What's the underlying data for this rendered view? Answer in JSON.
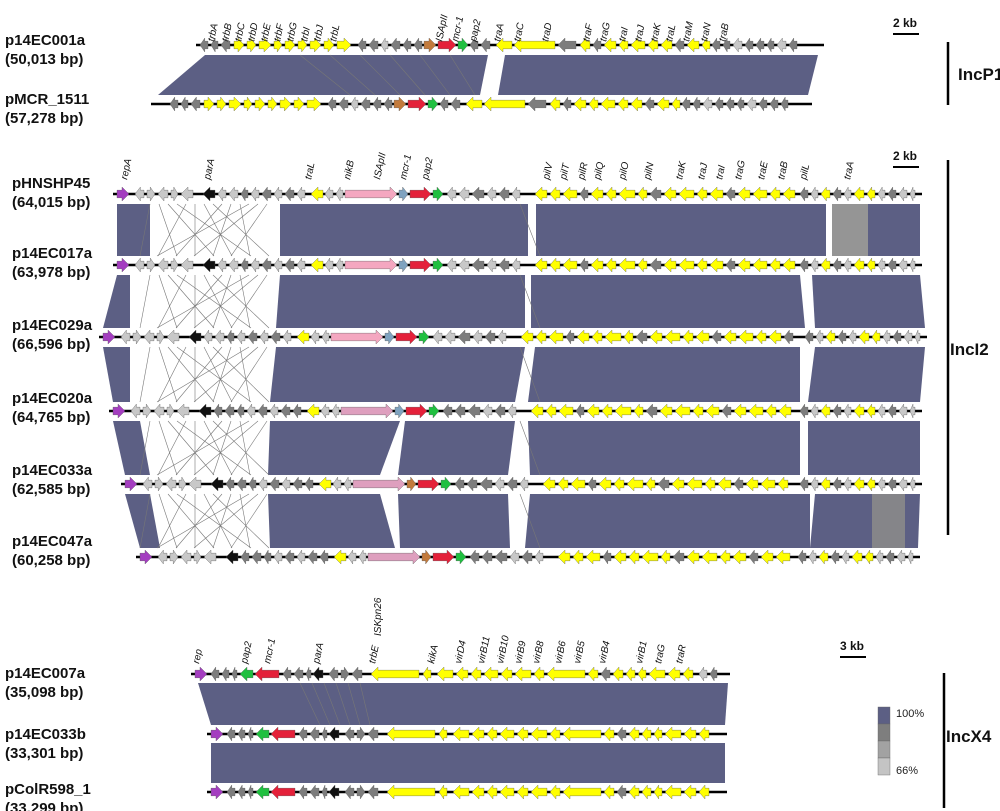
{
  "colors": {
    "yellow": "#ffff00",
    "dgray": "#7d7d7d",
    "lgray": "#c8c8c8",
    "red": "#e4213a",
    "green": "#20c040",
    "purple": "#a43ec0",
    "black": "#111111",
    "pink": "#f4a7c0",
    "dpink": "#de9fbe",
    "orange": "#c27a3c",
    "blue": "#7fa3c0",
    "band": "#5c5f84",
    "band_gray": "#8a8a8a"
  },
  "groups": [
    {
      "name": "IncP1",
      "scale": "2 kb",
      "plasmids": [
        {
          "name": "p14EC001a",
          "size": "(50,013 bp)"
        },
        {
          "name": "pMCR_1511",
          "size": "(57,278 bp)"
        }
      ],
      "genes": [
        "trbA",
        "trbB",
        "trbC",
        "trbD",
        "trbE",
        "trbF",
        "trbG",
        "trbI",
        "trbJ",
        "trbL",
        "ISApII",
        "mcr-1",
        "pap2",
        "traA",
        "traC",
        "traD",
        "traF",
        "traG",
        "traI",
        "traJ",
        "traK",
        "traL",
        "traM",
        "traN",
        "traB"
      ]
    },
    {
      "name": "IncI2",
      "scale": "2 kb",
      "plasmids": [
        {
          "name": "pHNSHP45",
          "size": "(64,015 bp)"
        },
        {
          "name": "p14EC017a",
          "size": "(63,978 bp)"
        },
        {
          "name": "p14EC029a",
          "size": "(66,596 bp)"
        },
        {
          "name": "p14EC020a",
          "size": "(64,765 bp)"
        },
        {
          "name": "p14EC033a",
          "size": "(62,585 bp)"
        },
        {
          "name": "p14EC047a",
          "size": "(60,258 bp)"
        }
      ],
      "genes": [
        "repA",
        "parA",
        "traL",
        "nikB",
        "ISApII",
        "mcr-1",
        "pap2",
        "pilV",
        "pilT",
        "pilR",
        "pilQ",
        "pilO",
        "pilN",
        "traK",
        "traJ",
        "traI",
        "traG",
        "traE",
        "traB",
        "pilL",
        "traA"
      ],
      "bottom_label": "ISKpn26"
    },
    {
      "name": "IncX4",
      "scale": "3 kb",
      "plasmids": [
        {
          "name": "p14EC007a",
          "size": "(35,098 bp)"
        },
        {
          "name": "p14EC033b",
          "size": "(33,301 bp)"
        },
        {
          "name": "pColR598_1",
          "size": "(33,299 bp)"
        }
      ],
      "genes": [
        "rep",
        "pap2",
        "mcr-1",
        "parA",
        "trbE",
        "kikA",
        "virD4",
        "virB11",
        "virB10",
        "virB9",
        "virB8",
        "virB6",
        "virB5",
        "virB4",
        "virB1",
        "traG",
        "traR"
      ]
    }
  ],
  "legend": {
    "max": "100%",
    "min": "66%"
  }
}
